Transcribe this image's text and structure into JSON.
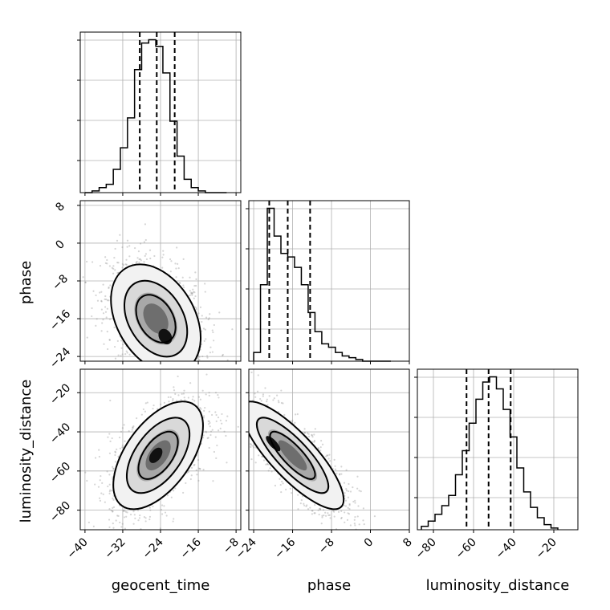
{
  "chart_data": {
    "type": "corner",
    "parameters": [
      "geocent_time",
      "phase",
      "luminosity_distance"
    ],
    "grid": true,
    "hist_geocent_time": {
      "name": "geocent_time",
      "xlabel": "",
      "range": [
        -41,
        -7
      ],
      "ticks": [
        -40,
        -32,
        -24,
        -16,
        -8
      ],
      "tick_labels": [
        "−40",
        "−32",
        "−24",
        "−16",
        "−8"
      ],
      "bins": [
        -40,
        -38.5,
        -37,
        -35.5,
        -34,
        -32.5,
        -31,
        -29.5,
        -28,
        -26.5,
        -25,
        -23.5,
        -22,
        -20.5,
        -19,
        -17.5,
        -16,
        -14.5,
        -13,
        -11.5,
        -10
      ],
      "counts": [
        0,
        1,
        3,
        5,
        14,
        27,
        45,
        74,
        90,
        92,
        88,
        72,
        43,
        22,
        8,
        3,
        1,
        0,
        0,
        0
      ],
      "quantiles": [
        -28.4,
        -24.8,
        -21.0
      ]
    },
    "hist_phase": {
      "name": "phase",
      "range": [
        -25,
        8
      ],
      "ticks": [
        -24,
        -16,
        -8,
        0,
        8
      ],
      "tick_labels": [
        "−24",
        "−16",
        "−8",
        "0",
        "8"
      ],
      "bins": [
        -24,
        -22.6,
        -21.2,
        -19.8,
        -18.4,
        -17,
        -15.6,
        -14.2,
        -12.8,
        -11.4,
        -10,
        -8.6,
        -7.2,
        -5.8,
        -4.4,
        -3,
        -1.6,
        -0.2,
        1.4,
        2.8,
        4.2
      ],
      "counts": [
        5,
        44,
        88,
        72,
        62,
        60,
        54,
        44,
        28,
        17,
        10,
        8,
        5,
        3,
        2,
        1,
        0,
        0,
        0,
        0
      ],
      "quantiles": [
        -20.8,
        -17.0,
        -12.4
      ]
    },
    "hist_luminosity_distance": {
      "name": "luminosity_distance",
      "range": [
        -88,
        -8
      ],
      "ticks": [
        -80,
        -60,
        -40,
        -20
      ],
      "tick_labels": [
        "−80",
        "−60",
        "−40",
        "−20"
      ],
      "bins": [
        -86,
        -82.6,
        -79.2,
        -75.8,
        -72.4,
        -69,
        -65.6,
        -62.2,
        -58.8,
        -55.4,
        -52,
        -48.6,
        -45.2,
        -41.8,
        -38.4,
        -35,
        -31.6,
        -28.2,
        -24.8,
        -21.4,
        -18
      ],
      "counts": [
        2,
        5,
        9,
        14,
        20,
        32,
        46,
        62,
        76,
        86,
        89,
        82,
        70,
        54,
        36,
        22,
        13,
        7,
        3,
        1
      ],
      "quantiles": [
        -63.5,
        -52.5,
        -41.5
      ]
    },
    "scatter_phase_vs_geocent_time": {
      "x_param": "geocent_time",
      "y_param": "phase",
      "x_range": [
        -41,
        -7
      ],
      "y_range": [
        -25,
        9
      ],
      "y_ticks": [
        8,
        0,
        -8,
        -16,
        -24
      ],
      "y_tick_labels": [
        "8",
        "0",
        "−8",
        "−16",
        "−24"
      ],
      "center": [
        -25,
        -16
      ],
      "spread": [
        3.8,
        4.6
      ],
      "correlation": -0.35,
      "peak": [
        -23.0,
        -19.8
      ]
    },
    "scatter_luminosity_distance_vs_geocent_time": {
      "x_param": "geocent_time",
      "y_param": "luminosity_distance",
      "x_range": [
        -41,
        -7
      ],
      "y_range": [
        -90,
        -8
      ],
      "y_ticks": [
        -20,
        -40,
        -60,
        -80
      ],
      "y_tick_labels": [
        "−20",
        "−40",
        "−60",
        "−80"
      ],
      "center": [
        -24.5,
        -52
      ],
      "spread": [
        3.8,
        11
      ],
      "correlation": 0.55,
      "peak": [
        -25,
        -52
      ]
    },
    "scatter_luminosity_distance_vs_phase": {
      "x_param": "phase",
      "y_param": "luminosity_distance",
      "x_range": [
        -25,
        8
      ],
      "y_range": [
        -90,
        -8
      ],
      "center": [
        -16,
        -52
      ],
      "spread": [
        4.2,
        11
      ],
      "correlation": -0.82,
      "peak": [
        -20,
        -46
      ]
    },
    "xlabels": [
      "geocent_time",
      "phase",
      "luminosity_distance"
    ],
    "ylabels": [
      "phase",
      "luminosity_distance"
    ]
  }
}
